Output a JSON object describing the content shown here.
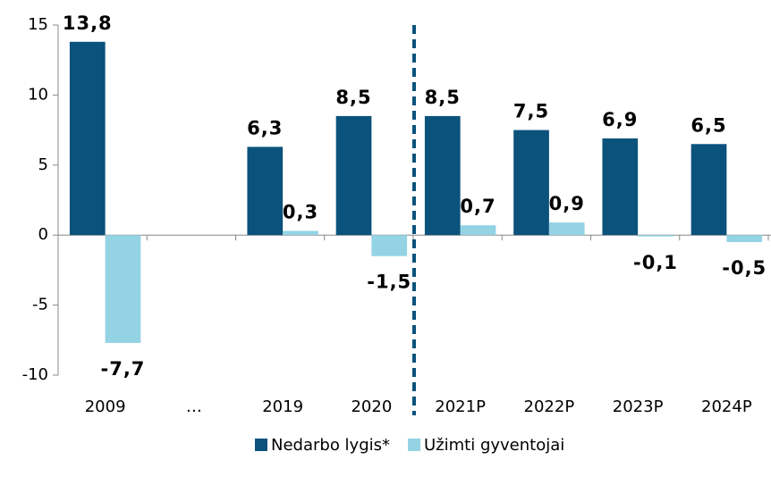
{
  "chart_data": {
    "type": "bar",
    "categories": [
      "2009",
      "…",
      "2019",
      "2020",
      "2021P",
      "2022P",
      "2023P",
      "2024P"
    ],
    "series": [
      {
        "name": "Nedarbo lygis*",
        "color": "#0b527c",
        "values": [
          13.8,
          null,
          6.3,
          8.5,
          8.5,
          7.5,
          6.9,
          6.5
        ],
        "value_labels": [
          "13,8",
          null,
          "6,3",
          "8,5",
          "8,5",
          "7,5",
          "6,9",
          "6,5"
        ]
      },
      {
        "name": "Užimti gyventojai",
        "color": "#93d3e4",
        "values": [
          -7.7,
          null,
          0.3,
          -1.5,
          0.7,
          0.9,
          -0.1,
          -0.5
        ],
        "value_labels": [
          "-7,7",
          null,
          "0,3",
          "-1,5",
          "0,7",
          "0,9",
          "-0,1",
          "-0,5"
        ]
      }
    ],
    "ylim": [
      -10,
      15
    ],
    "yticks": [
      -10,
      -5,
      0,
      5,
      10,
      15
    ],
    "legend": "bottom"
  }
}
